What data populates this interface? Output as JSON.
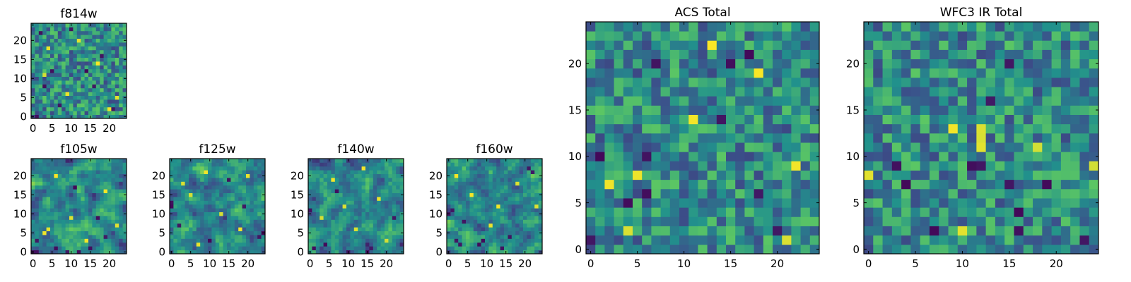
{
  "figure": {
    "colormap": [
      "#440154",
      "#3b528b",
      "#21918c",
      "#5ec962",
      "#fde725"
    ],
    "frame_color": "#000000",
    "background": "#ffffff"
  },
  "chart_data": [
    {
      "type": "heatmap",
      "title": "f814w",
      "grid": false,
      "x_ticks": [
        0,
        5,
        10,
        15,
        20
      ],
      "y_ticks": [
        0,
        5,
        10,
        15,
        20
      ],
      "xlim": [
        -0.5,
        24.5
      ],
      "ylim": [
        -0.5,
        24.5
      ],
      "size": 25,
      "seed": 11,
      "smooth": false,
      "low_values": [
        [
          1,
          0
        ],
        [
          3,
          8
        ],
        [
          5,
          12
        ],
        [
          14,
          12
        ],
        [
          18,
          16
        ],
        [
          10,
          23
        ],
        [
          21,
          2
        ],
        [
          7,
          3
        ],
        [
          2,
          22
        ],
        [
          16,
          8
        ]
      ],
      "high_values": [
        [
          20,
          2
        ],
        [
          22,
          5
        ],
        [
          4,
          18
        ],
        [
          12,
          20
        ],
        [
          9,
          6
        ],
        [
          17,
          14
        ],
        [
          3,
          11
        ]
      ]
    },
    {
      "type": "heatmap",
      "title": "f105w",
      "grid": false,
      "x_ticks": [
        0,
        5,
        10,
        15,
        20
      ],
      "y_ticks": [
        0,
        5,
        10,
        15,
        20
      ],
      "xlim": [
        -0.5,
        24.5
      ],
      "ylim": [
        -0.5,
        24.5
      ],
      "size": 25,
      "seed": 23,
      "smooth": true,
      "low_values": [
        [
          9,
          0
        ],
        [
          12,
          0
        ],
        [
          15,
          1
        ],
        [
          1,
          3
        ],
        [
          6,
          1
        ],
        [
          19,
          4
        ],
        [
          11,
          17
        ],
        [
          17,
          9
        ]
      ],
      "high_values": [
        [
          3,
          5
        ],
        [
          4,
          6
        ],
        [
          10,
          9
        ],
        [
          22,
          7
        ],
        [
          14,
          3
        ],
        [
          6,
          20
        ],
        [
          19,
          16
        ]
      ]
    },
    {
      "type": "heatmap",
      "title": "f125w",
      "grid": false,
      "x_ticks": [
        0,
        5,
        10,
        15,
        20
      ],
      "y_ticks": [
        0,
        5,
        10,
        15,
        20
      ],
      "xlim": [
        -0.5,
        24.5
      ],
      "ylim": [
        -0.5,
        24.5
      ],
      "size": 25,
      "seed": 37,
      "smooth": true,
      "low_values": [
        [
          0,
          12
        ],
        [
          0,
          13
        ],
        [
          2,
          7
        ],
        [
          10,
          3
        ],
        [
          24,
          5
        ],
        [
          23,
          4
        ],
        [
          15,
          19
        ],
        [
          19,
          12
        ]
      ],
      "high_values": [
        [
          5,
          15
        ],
        [
          7,
          2
        ],
        [
          13,
          10
        ],
        [
          20,
          20
        ],
        [
          18,
          6
        ],
        [
          9,
          21
        ],
        [
          3,
          18
        ]
      ]
    },
    {
      "type": "heatmap",
      "title": "f140w",
      "grid": false,
      "x_ticks": [
        0,
        5,
        10,
        15,
        20
      ],
      "y_ticks": [
        0,
        5,
        10,
        15,
        20
      ],
      "xlim": [
        -0.5,
        24.5
      ],
      "ylim": [
        -0.5,
        24.5
      ],
      "size": 25,
      "seed": 53,
      "smooth": true,
      "low_values": [
        [
          1,
          1
        ],
        [
          4,
          2
        ],
        [
          15,
          0
        ],
        [
          16,
          1
        ],
        [
          10,
          0
        ],
        [
          0,
          11
        ],
        [
          22,
          9
        ],
        [
          7,
          16
        ]
      ],
      "high_values": [
        [
          3,
          9
        ],
        [
          12,
          6
        ],
        [
          18,
          14
        ],
        [
          6,
          19
        ],
        [
          20,
          3
        ],
        [
          14,
          22
        ],
        [
          9,
          12
        ]
      ]
    },
    {
      "type": "heatmap",
      "title": "f160w",
      "grid": false,
      "x_ticks": [
        0,
        5,
        10,
        15,
        20
      ],
      "y_ticks": [
        0,
        5,
        10,
        15,
        20
      ],
      "xlim": [
        -0.5,
        24.5
      ],
      "ylim": [
        -0.5,
        24.5
      ],
      "size": 25,
      "seed": 71,
      "smooth": true,
      "low_values": [
        [
          2,
          3
        ],
        [
          3,
          2
        ],
        [
          8,
          2
        ],
        [
          9,
          3
        ],
        [
          0,
          10
        ],
        [
          1,
          11
        ],
        [
          21,
          22
        ],
        [
          22,
          21
        ],
        [
          4,
          8
        ],
        [
          16,
          4
        ],
        [
          14,
          1
        ]
      ],
      "high_values": [
        [
          6,
          15
        ],
        [
          11,
          7
        ],
        [
          18,
          18
        ],
        [
          2,
          20
        ],
        [
          23,
          12
        ],
        [
          13,
          12
        ]
      ]
    },
    {
      "type": "heatmap",
      "title": "ACS Total",
      "grid": false,
      "x_ticks": [
        0,
        5,
        10,
        15,
        20
      ],
      "y_ticks": [
        0,
        5,
        10,
        15,
        20
      ],
      "xlim": [
        -0.5,
        24.5
      ],
      "ylim": [
        -0.5,
        24.5
      ],
      "size": 25,
      "seed": 89,
      "smooth": false,
      "low_values": [
        [
          0,
          1
        ],
        [
          1,
          10
        ],
        [
          6,
          10
        ],
        [
          4,
          5
        ],
        [
          6,
          6
        ],
        [
          7,
          20
        ],
        [
          14,
          14
        ],
        [
          15,
          20
        ],
        [
          18,
          6
        ],
        [
          20,
          2
        ],
        [
          17,
          21
        ]
      ],
      "high_values": [
        [
          2,
          7
        ],
        [
          4,
          2
        ],
        [
          22,
          9
        ],
        [
          21,
          1
        ],
        [
          11,
          14
        ],
        [
          18,
          19
        ],
        [
          5,
          8
        ],
        [
          13,
          22
        ]
      ]
    },
    {
      "type": "heatmap",
      "title": "WFC3 IR Total",
      "grid": false,
      "x_ticks": [
        0,
        5,
        10,
        15,
        20
      ],
      "y_ticks": [
        0,
        5,
        10,
        15,
        20
      ],
      "xlim": [
        -0.5,
        24.5
      ],
      "ylim": [
        -0.5,
        24.5
      ],
      "size": 25,
      "seed": 97,
      "smooth": false,
      "low_values": [
        [
          4,
          7
        ],
        [
          7,
          2
        ],
        [
          11,
          9
        ],
        [
          12,
          9
        ],
        [
          13,
          16
        ],
        [
          16,
          2
        ],
        [
          16,
          4
        ],
        [
          15,
          7
        ],
        [
          19,
          7
        ],
        [
          23,
          1
        ],
        [
          15,
          20
        ],
        [
          3,
          9
        ]
      ],
      "high_values": [
        [
          12,
          12
        ],
        [
          12,
          13
        ],
        [
          12,
          11
        ],
        [
          9,
          13
        ],
        [
          24,
          9
        ],
        [
          0,
          8
        ],
        [
          10,
          2
        ],
        [
          18,
          11
        ]
      ]
    }
  ]
}
